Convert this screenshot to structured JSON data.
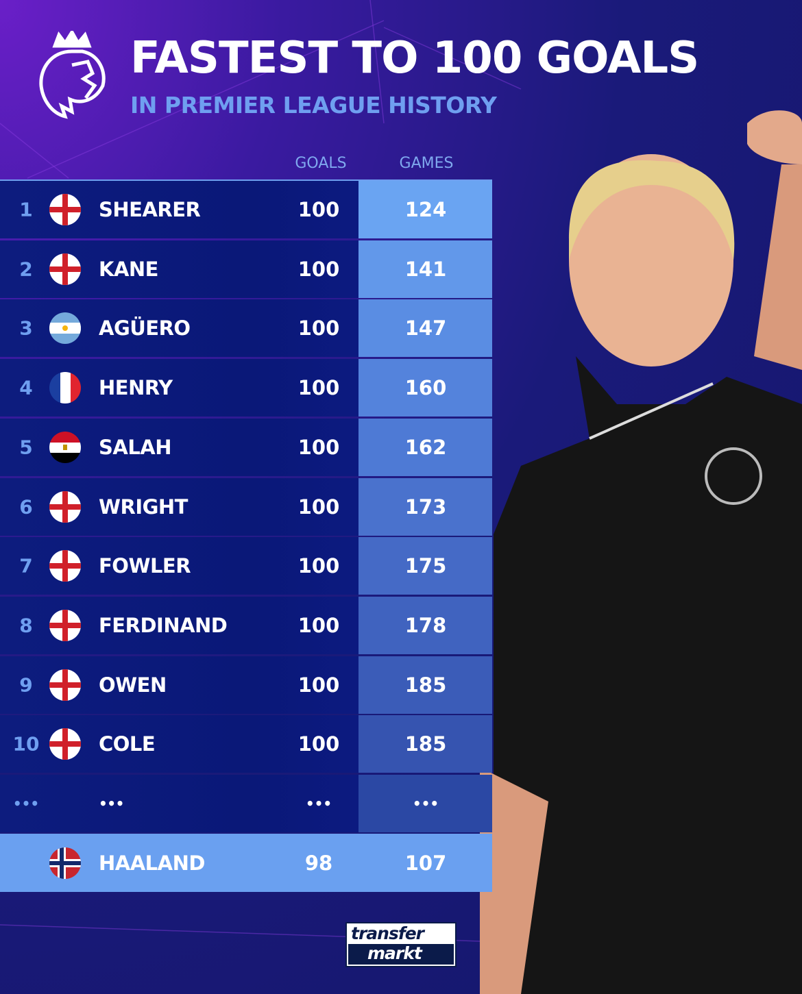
{
  "header": {
    "title": "FASTEST TO 100 GOALS",
    "subtitle": "IN PREMIER LEAGUE HISTORY",
    "logo": "premier-league-lion"
  },
  "columns": {
    "goals": "GOALS",
    "games": "GAMES"
  },
  "colors": {
    "accent": "#6f9ff0",
    "games_top": "#6aa4f2",
    "games_bottom": "#2b48a4",
    "row_bg": "#0c1a7e",
    "highlight": "#6aa0f0"
  },
  "rows": [
    {
      "rank": "1",
      "flag": "england",
      "name": "SHEARER",
      "goals": "100",
      "games": "124"
    },
    {
      "rank": "2",
      "flag": "england",
      "name": "KANE",
      "goals": "100",
      "games": "141"
    },
    {
      "rank": "3",
      "flag": "argentina",
      "name": "AGÜERO",
      "goals": "100",
      "games": "147"
    },
    {
      "rank": "4",
      "flag": "france",
      "name": "HENRY",
      "goals": "100",
      "games": "160"
    },
    {
      "rank": "5",
      "flag": "egypt",
      "name": "SALAH",
      "goals": "100",
      "games": "162"
    },
    {
      "rank": "6",
      "flag": "england",
      "name": "WRIGHT",
      "goals": "100",
      "games": "173"
    },
    {
      "rank": "7",
      "flag": "england",
      "name": "FOWLER",
      "goals": "100",
      "games": "175"
    },
    {
      "rank": "8",
      "flag": "england",
      "name": "FERDINAND",
      "goals": "100",
      "games": "178"
    },
    {
      "rank": "9",
      "flag": "england",
      "name": "OWEN",
      "goals": "100",
      "games": "185"
    },
    {
      "rank": "10",
      "flag": "england",
      "name": "COLE",
      "goals": "100",
      "games": "185"
    }
  ],
  "ellipsis": {
    "rank": "•••",
    "name": "•••",
    "goals": "•••",
    "games": "•••"
  },
  "highlight": {
    "flag": "norway",
    "name": "HAALAND",
    "goals": "98",
    "games": "107"
  },
  "branding": {
    "logo_text_1": "transfer",
    "logo_text_2": "markt"
  },
  "chart_data": {
    "type": "table",
    "title": "FASTEST TO 100 GOALS",
    "subtitle": "IN PREMIER LEAGUE HISTORY",
    "columns": [
      "GOALS",
      "GAMES"
    ],
    "categories": [
      "SHEARER",
      "KANE",
      "AGÜERO",
      "HENRY",
      "SALAH",
      "WRIGHT",
      "FOWLER",
      "FERDINAND",
      "OWEN",
      "COLE",
      "HAALAND"
    ],
    "series": [
      {
        "name": "GOALS",
        "values": [
          100,
          100,
          100,
          100,
          100,
          100,
          100,
          100,
          100,
          100,
          98
        ]
      },
      {
        "name": "GAMES",
        "values": [
          124,
          141,
          147,
          160,
          162,
          173,
          175,
          178,
          185,
          185,
          107
        ]
      }
    ]
  }
}
